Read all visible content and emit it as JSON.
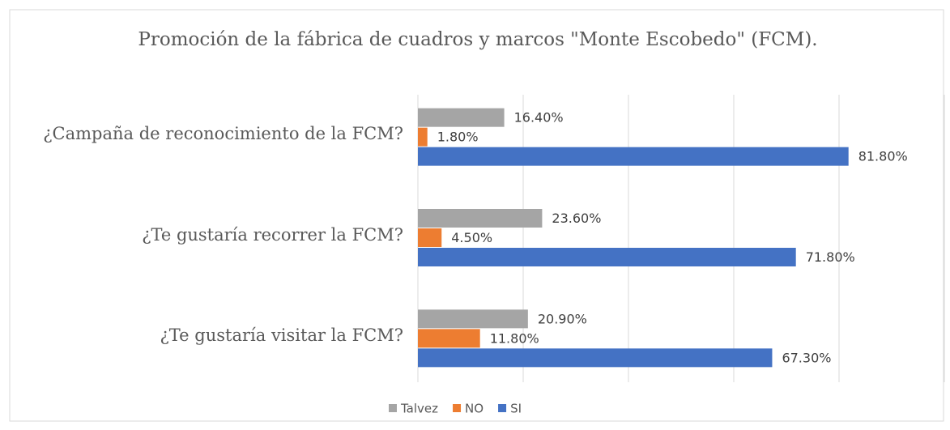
{
  "chart_data": {
    "type": "barh",
    "title": "Promoción de la fábrica de cuadros y marcos \"Monte Escobedo\" (FCM).",
    "categories": [
      "¿Campaña de reconocimiento de la FCM?",
      "¿Te gustaría recorrer la FCM?",
      "¿Te gustaría visitar la FCM?"
    ],
    "series": [
      {
        "name": "Talvez",
        "color": "#a5a5a5",
        "values": [
          16.4,
          23.6,
          20.9
        ],
        "value_labels": [
          "16.40%",
          "23.60%",
          "20.90%"
        ]
      },
      {
        "name": "NO",
        "color": "#ed7d31",
        "values": [
          1.8,
          4.5,
          11.8
        ],
        "value_labels": [
          "1.80%",
          "4.50%",
          "11.80%"
        ]
      },
      {
        "name": "SI",
        "color": "#4472c4",
        "values": [
          81.8,
          71.8,
          67.3
        ],
        "value_labels": [
          "81.80%",
          "71.80%",
          "67.30%"
        ]
      }
    ],
    "xlim": [
      0,
      100
    ],
    "xticks": [
      0,
      20,
      40,
      60,
      80,
      100
    ],
    "grid": true,
    "legend": "bottom"
  }
}
